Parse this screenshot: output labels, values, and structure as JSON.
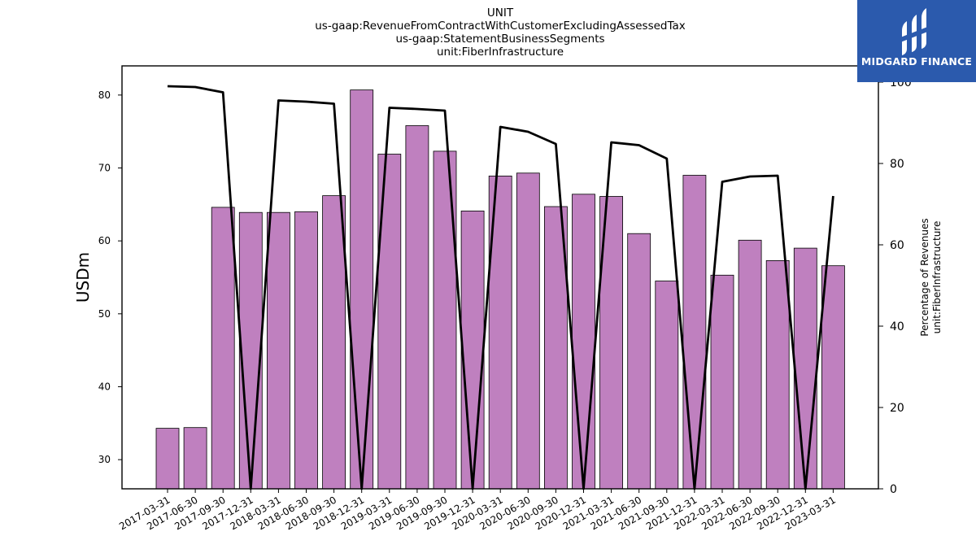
{
  "brand": {
    "name": "MIDGARD FINANCE",
    "accent": "#2b5aad"
  },
  "chart_data": {
    "type": "bar",
    "title_lines": [
      "UNIT",
      "us-gaap:RevenueFromContractWithCustomerExcludingAssessedTax",
      "us-gaap:StatementBusinessSegments",
      "unit:FiberInfrastructure"
    ],
    "ylabel": "USDm",
    "ylabel_right_lines": [
      "Percentage of Revenues",
      "unit:FiberInfrastructure"
    ],
    "categories": [
      "2017-03-31",
      "2017-06-30",
      "2017-09-30",
      "2017-12-31",
      "2018-03-31",
      "2018-06-30",
      "2018-09-30",
      "2018-12-31",
      "2019-03-31",
      "2019-06-30",
      "2019-09-30",
      "2019-12-31",
      "2020-03-31",
      "2020-06-30",
      "2020-09-30",
      "2020-12-31",
      "2021-03-31",
      "2021-06-30",
      "2021-09-30",
      "2021-12-31",
      "2022-03-31",
      "2022-06-30",
      "2022-09-30",
      "2022-12-31",
      "2023-03-31"
    ],
    "series": [
      {
        "kind": "bar",
        "axis": "left",
        "color": "#bf80bf",
        "values": [
          34.3,
          34.4,
          64.6,
          63.9,
          63.9,
          64.0,
          66.2,
          80.7,
          71.9,
          75.8,
          72.3,
          64.1,
          68.9,
          69.3,
          64.7,
          66.4,
          66.1,
          61.0,
          54.5,
          69.0,
          55.3,
          60.1,
          57.3,
          59.0,
          56.6
        ]
      },
      {
        "kind": "line",
        "axis": "right",
        "color": "#000000",
        "values": [
          99.0,
          98.8,
          97.5,
          0,
          95.5,
          95.2,
          94.7,
          0,
          93.7,
          93.4,
          93.0,
          0,
          89.0,
          87.8,
          84.8,
          0,
          85.2,
          84.5,
          81.2,
          0,
          75.5,
          76.8,
          77.0,
          0,
          72.0
        ]
      }
    ],
    "ylim": [
      26,
      84
    ],
    "yticks": [
      30,
      40,
      50,
      60,
      70,
      80
    ],
    "ylim_right": [
      0,
      104
    ],
    "yticks_right": [
      0,
      20,
      40,
      60,
      80,
      100
    ],
    "grid": false,
    "legend": "none"
  }
}
